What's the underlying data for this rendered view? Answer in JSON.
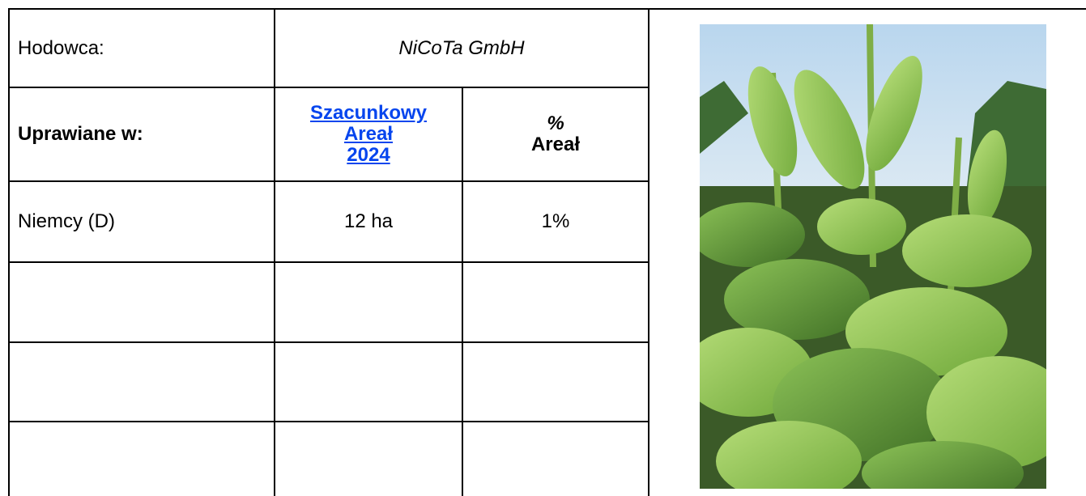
{
  "table": {
    "breeder_label": "Hodowca:",
    "breeder": "NiCoTa GmbH",
    "grown_in_label": "Uprawiane w:",
    "area_header": [
      "Szacunkowy",
      "Areał",
      "2024"
    ],
    "share_header": [
      "%",
      "Areał"
    ],
    "rows": [
      [
        "Niemcy (D)",
        "12 ha",
        "1%"
      ]
    ]
  }
}
